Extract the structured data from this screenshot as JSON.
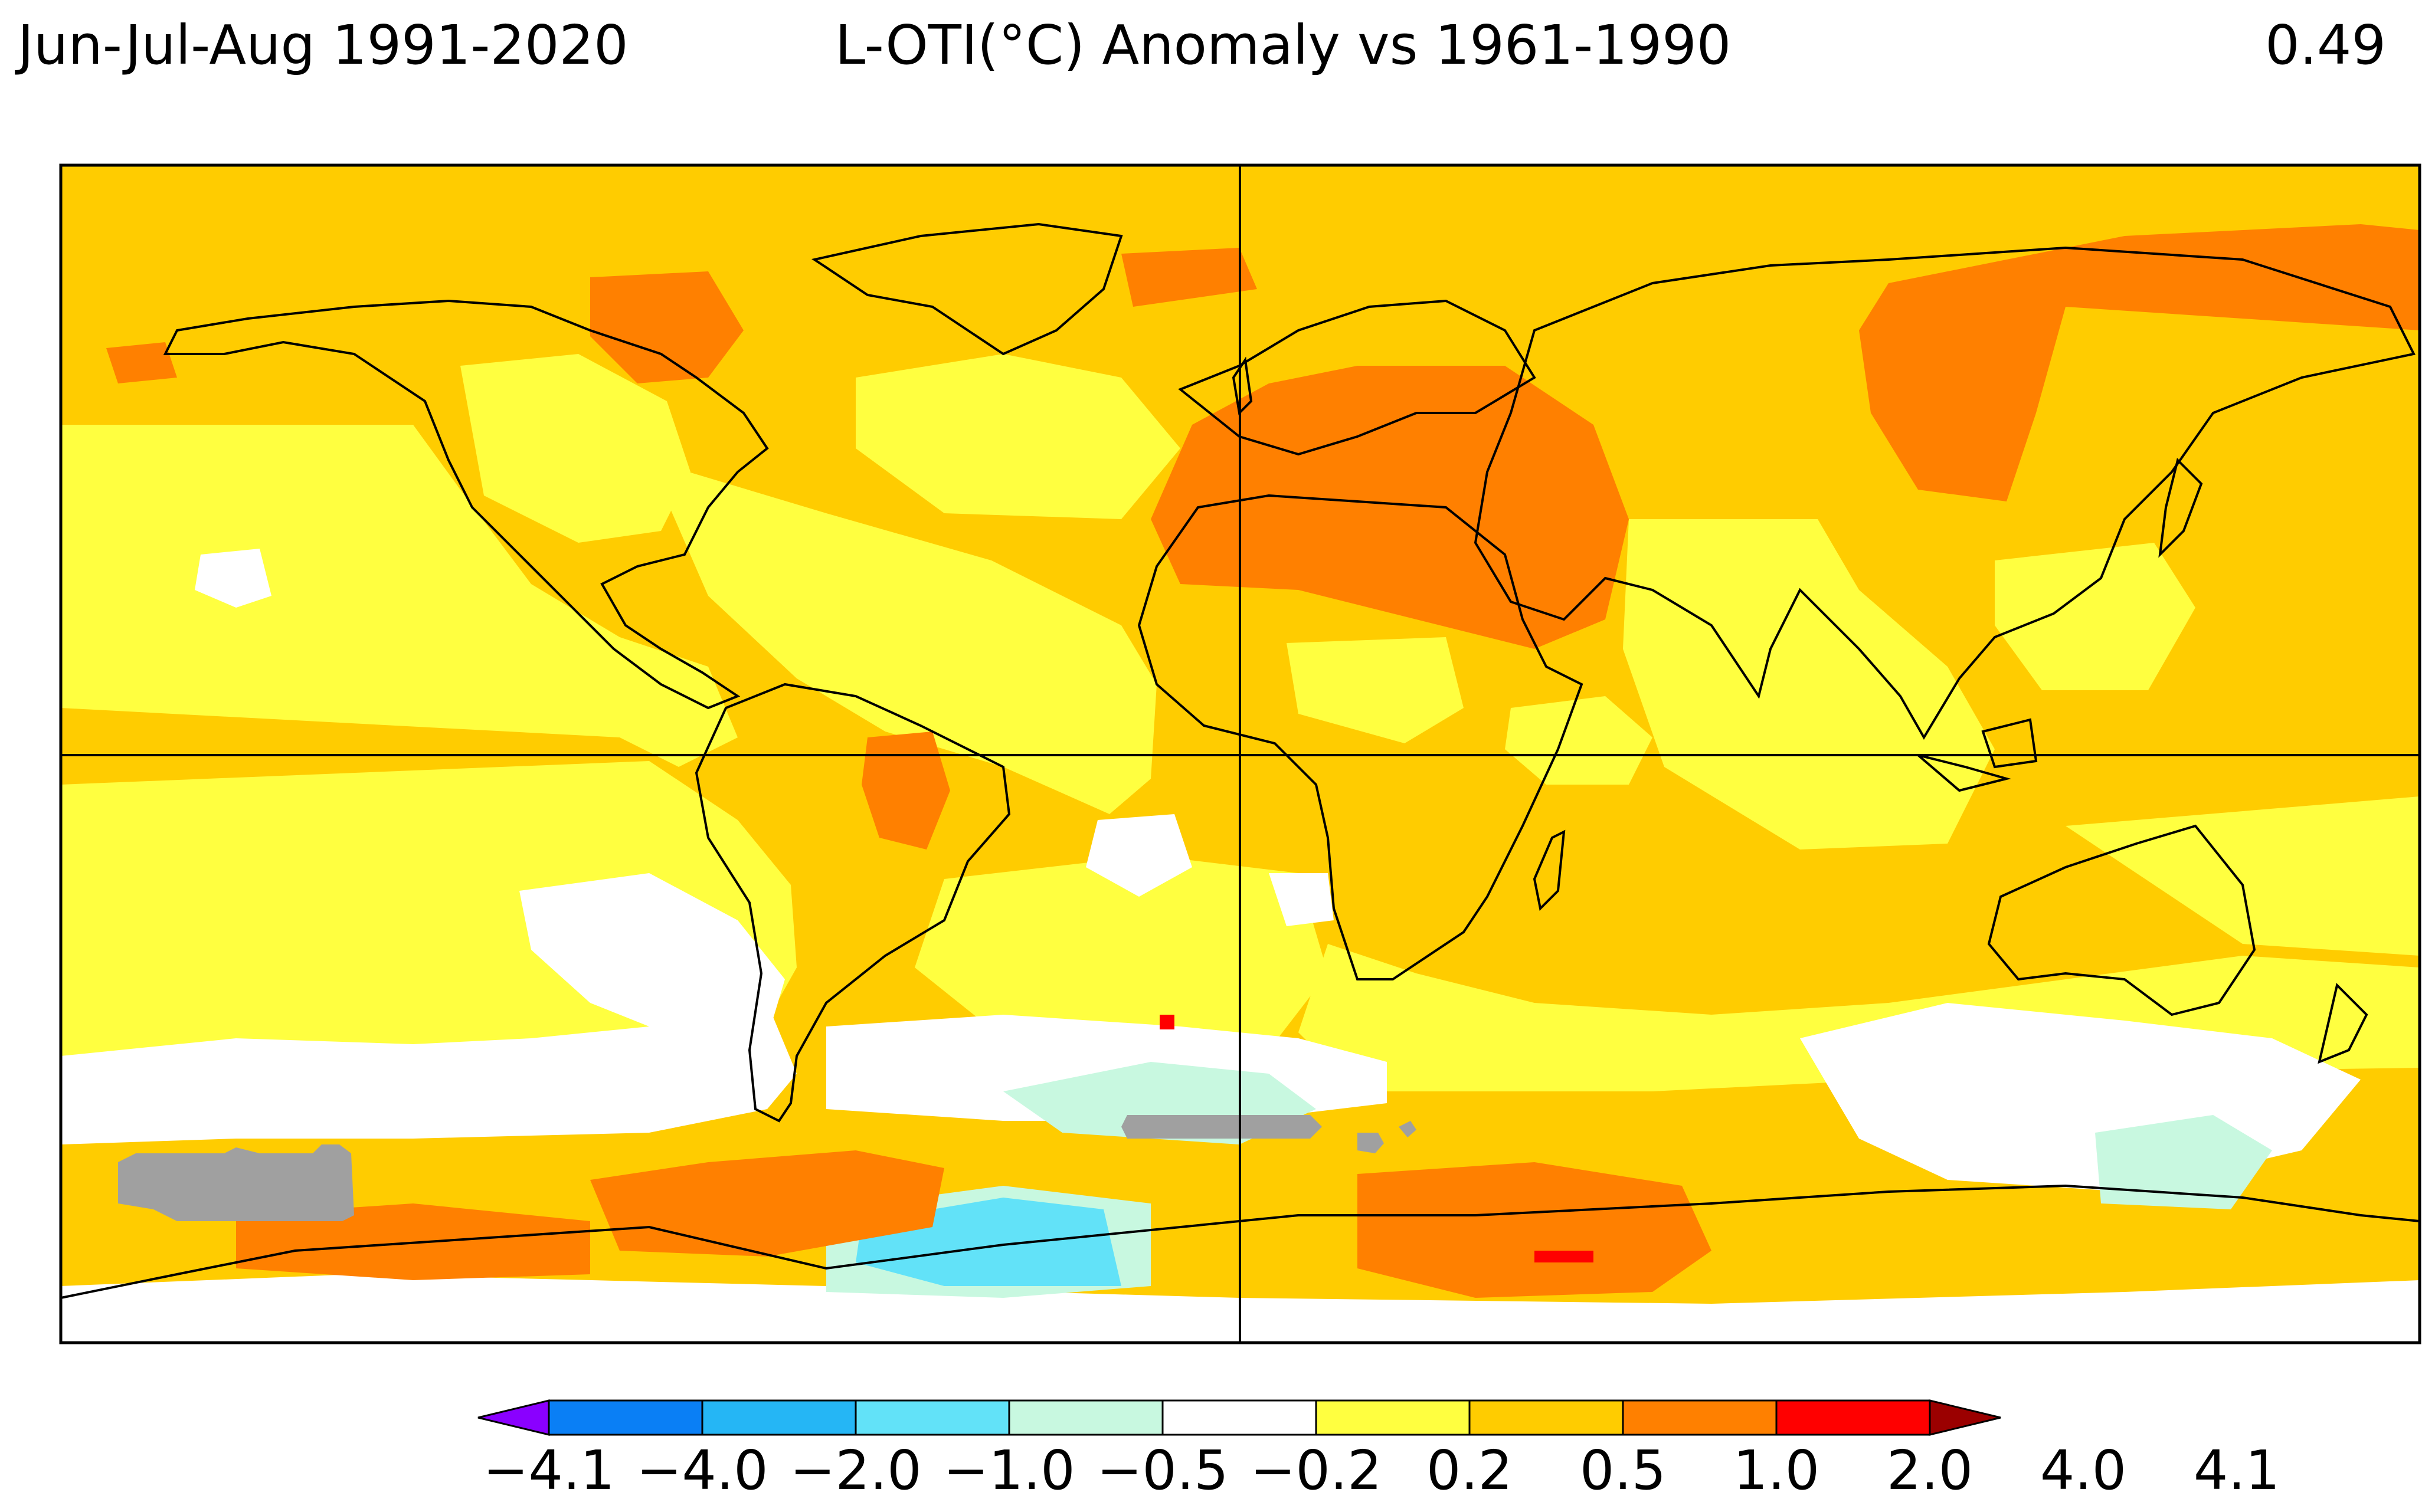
{
  "header": {
    "left": "Jun-Jul-Aug 1991-2020",
    "center": "L-OTI(°C) Anomaly vs 1961-1990",
    "right": "0.49"
  },
  "colorbar": {
    "colors": [
      "#8a00ff",
      "#0a7ff5",
      "#25b6f5",
      "#62e2f8",
      "#c8f8e0",
      "#ffffff",
      "#ffff40",
      "#ffcc00",
      "#ff8000",
      "#ff0000",
      "#9b0000"
    ],
    "ticks": [
      "−4.1",
      "−4.0",
      "−2.0",
      "−1.0",
      "−0.5",
      "−0.2",
      "0.2",
      "0.5",
      "1.0",
      "2.0",
      "4.0",
      "4.1"
    ]
  },
  "map": {
    "background_color": "#ffcc00",
    "missing_color": "#a0a0a0"
  }
}
